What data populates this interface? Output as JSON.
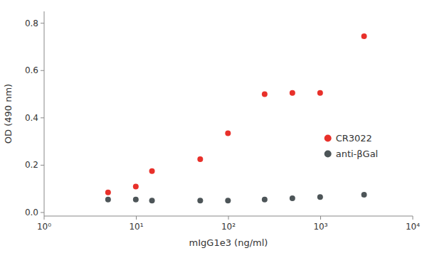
{
  "chart_data": {
    "type": "scatter",
    "xlabel": "mIgG1e3 (ng/ml)",
    "ylabel": "OD (490 nm)",
    "x": [
      4.94,
      9.88,
      14.8,
      49.4,
      98.8,
      247,
      494,
      988,
      2960
    ],
    "series": [
      {
        "name": "CR3022",
        "color": "#e8302a",
        "marker": "circle",
        "values": [
          0.085,
          0.11,
          0.175,
          0.225,
          0.335,
          0.5,
          0.505,
          0.505,
          0.745
        ]
      },
      {
        "name": "anti-βGal",
        "color": "#4d5558",
        "marker": "circle",
        "values": [
          0.055,
          0.055,
          0.05,
          0.05,
          0.05,
          0.055,
          0.06,
          0.065,
          0.075
        ]
      }
    ],
    "log": "x",
    "xlim": [
      1,
      10000
    ],
    "xticks": [
      {
        "value": 1,
        "label": "10⁰"
      },
      {
        "value": 10,
        "label": "10¹"
      },
      {
        "value": 100,
        "label": "10²"
      },
      {
        "value": 1000,
        "label": "10³"
      },
      {
        "value": 10000,
        "label": "10⁴"
      }
    ],
    "ylim": [
      -0.015,
      0.85
    ],
    "yticks": [
      {
        "value": 0.0,
        "label": "0.0"
      },
      0.2,
      0.4,
      0.6,
      0.8
    ],
    "grid": false,
    "legend": "lower right"
  }
}
